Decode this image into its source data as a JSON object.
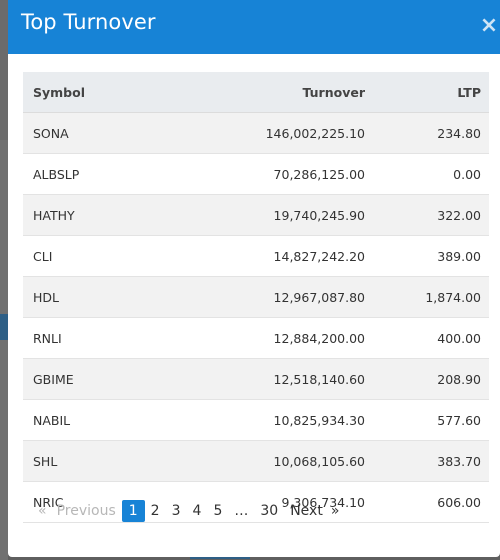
{
  "modal": {
    "title": "Top Turnover",
    "close_glyph": "×"
  },
  "table": {
    "headers": {
      "symbol": "Symbol",
      "turnover": "Turnover",
      "ltp": "LTP"
    },
    "rows": [
      {
        "symbol": "SONA",
        "turnover": "146,002,225.10",
        "ltp": "234.80"
      },
      {
        "symbol": "ALBSLP",
        "turnover": "70,286,125.00",
        "ltp": "0.00"
      },
      {
        "symbol": "HATHY",
        "turnover": "19,740,245.90",
        "ltp": "322.00"
      },
      {
        "symbol": "CLI",
        "turnover": "14,827,242.20",
        "ltp": "389.00"
      },
      {
        "symbol": "HDL",
        "turnover": "12,967,087.80",
        "ltp": "1,874.00"
      },
      {
        "symbol": "RNLI",
        "turnover": "12,884,200.00",
        "ltp": "400.00"
      },
      {
        "symbol": "GBIME",
        "turnover": "12,518,140.60",
        "ltp": "208.90"
      },
      {
        "symbol": "NABIL",
        "turnover": "10,825,934.30",
        "ltp": "577.60"
      },
      {
        "symbol": "SHL",
        "turnover": "10,068,105.60",
        "ltp": "383.70"
      },
      {
        "symbol": "NRIC",
        "turnover": "9,306,734.10",
        "ltp": "606.00"
      }
    ]
  },
  "pagination": {
    "prev_arrow": "«",
    "previous": "Previous",
    "pages": [
      "1",
      "2",
      "3",
      "4",
      "5"
    ],
    "ellipsis": "…",
    "last_page": "30",
    "next": "Next",
    "next_arrow": "»",
    "current": "1"
  },
  "colors": {
    "header": "#1783d6",
    "active_page": "#1783d6"
  }
}
